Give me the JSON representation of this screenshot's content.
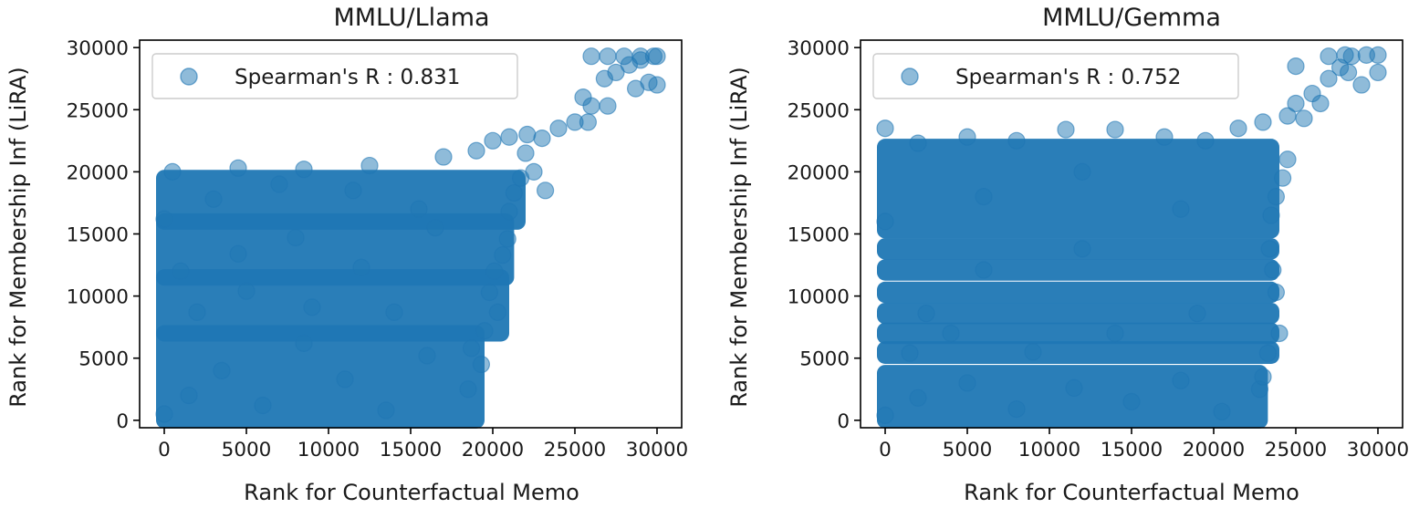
{
  "chart_data": [
    {
      "type": "scatter",
      "title": "MMLU/Llama",
      "xlabel": "Rank for Counterfactual Memo",
      "ylabel": "Rank for Membership Inf (LiRA)",
      "xlim": [
        -1500,
        31500
      ],
      "ylim": [
        -600,
        30600
      ],
      "xticks": [
        0,
        5000,
        10000,
        15000,
        20000,
        25000,
        30000
      ],
      "yticks": [
        0,
        5000,
        10000,
        15000,
        20000,
        25000,
        30000
      ],
      "xtick_labels": [
        "0",
        "5000",
        "10000",
        "15000",
        "20000",
        "25000",
        "30000"
      ],
      "ytick_labels": [
        "0",
        "5000",
        "10000",
        "15000",
        "20000",
        "25000",
        "30000"
      ],
      "grid": false,
      "legend": {
        "placement": "upper-left",
        "entries": [
          "Spearman's R : 0.831"
        ]
      },
      "series": [
        {
          "name": "Spearman's R : 0.831",
          "color": "#1f77b4",
          "alpha": 0.5,
          "bands": [
            {
              "y_min": 0,
              "y_max": 7000,
              "x_min": 0,
              "x_max": 19000
            },
            {
              "y_min": 7000,
              "y_max": 11500,
              "x_min": 0,
              "x_max": 20500
            },
            {
              "y_min": 11500,
              "y_max": 16000,
              "x_min": 0,
              "x_max": 20800
            },
            {
              "y_min": 16000,
              "y_max": 19500,
              "x_min": 0,
              "x_max": 21500
            }
          ],
          "sampled_points": [
            [
              0,
              500
            ],
            [
              1500,
              2000
            ],
            [
              3500,
              4000
            ],
            [
              6000,
              1200
            ],
            [
              8500,
              6200
            ],
            [
              11000,
              3300
            ],
            [
              13500,
              800
            ],
            [
              16000,
              5200
            ],
            [
              18500,
              2500
            ],
            [
              19300,
              4500
            ],
            [
              18700,
              5800
            ],
            [
              19500,
              7200
            ],
            [
              2000,
              8700
            ],
            [
              5000,
              10400
            ],
            [
              9000,
              9100
            ],
            [
              14000,
              8700
            ],
            [
              19800,
              10300
            ],
            [
              20300,
              8700
            ],
            [
              1000,
              12000
            ],
            [
              4500,
              13400
            ],
            [
              8000,
              14700
            ],
            [
              12000,
              12300
            ],
            [
              16500,
              15500
            ],
            [
              20100,
              12000
            ],
            [
              20600,
              13300
            ],
            [
              20900,
              14600
            ],
            [
              0,
              16200
            ],
            [
              3000,
              17800
            ],
            [
              7000,
              19000
            ],
            [
              11500,
              18500
            ],
            [
              15500,
              17000
            ],
            [
              21000,
              16800
            ],
            [
              21300,
              18300
            ],
            [
              21700,
              19500
            ],
            [
              500,
              20000
            ],
            [
              4500,
              20300
            ],
            [
              8500,
              20200
            ],
            [
              12500,
              20500
            ],
            [
              17000,
              21200
            ],
            [
              19000,
              21700
            ],
            [
              20000,
              22500
            ],
            [
              21000,
              22800
            ],
            [
              22000,
              21500
            ],
            [
              22500,
              20000
            ],
            [
              23200,
              18500
            ],
            [
              22100,
              23000
            ],
            [
              23000,
              22700
            ],
            [
              24000,
              23500
            ],
            [
              25000,
              24000
            ],
            [
              25500,
              26000
            ],
            [
              26000,
              25300
            ],
            [
              26800,
              27500
            ],
            [
              27500,
              28000
            ],
            [
              28300,
              28600
            ],
            [
              29000,
              29000
            ],
            [
              29800,
              29300
            ],
            [
              29500,
              27200
            ],
            [
              28700,
              26700
            ],
            [
              27000,
              25300
            ],
            [
              25800,
              24000
            ],
            [
              26000,
              29300
            ],
            [
              27000,
              29300
            ],
            [
              28000,
              29300
            ],
            [
              29000,
              29300
            ],
            [
              30000,
              29300
            ],
            [
              30000,
              27000
            ]
          ]
        }
      ]
    },
    {
      "type": "scatter",
      "title": "MMLU/Gemma",
      "xlabel": "Rank for Counterfactual Memo",
      "ylabel": "Rank for Membership Inf (LiRA)",
      "xlim": [
        -1500,
        31500
      ],
      "ylim": [
        -600,
        30600
      ],
      "xticks": [
        0,
        5000,
        10000,
        15000,
        20000,
        25000,
        30000
      ],
      "yticks": [
        0,
        5000,
        10000,
        15000,
        20000,
        25000,
        30000
      ],
      "xtick_labels": [
        "0",
        "5000",
        "10000",
        "15000",
        "20000",
        "25000",
        "30000"
      ],
      "ytick_labels": [
        "0",
        "5000",
        "10000",
        "15000",
        "20000",
        "25000",
        "30000"
      ],
      "grid": false,
      "legend": {
        "placement": "upper-left",
        "entries": [
          "Spearman's R : 0.752"
        ]
      },
      "series": [
        {
          "name": "Spearman's R : 0.752",
          "color": "#1f77b4",
          "alpha": 0.5,
          "bands": [
            {
              "y_min": 0,
              "y_max": 3800,
              "x_min": 0,
              "x_max": 22800
            },
            {
              "y_min": 5200,
              "y_max": 5700,
              "x_min": 0,
              "x_max": 23500
            },
            {
              "y_min": 6800,
              "y_max": 7200,
              "x_min": 0,
              "x_max": 23500
            },
            {
              "y_min": 8400,
              "y_max": 8800,
              "x_min": 0,
              "x_max": 23500
            },
            {
              "y_min": 10100,
              "y_max": 10500,
              "x_min": 0,
              "x_max": 23500
            },
            {
              "y_min": 11900,
              "y_max": 12300,
              "x_min": 0,
              "x_max": 23500
            },
            {
              "y_min": 13600,
              "y_max": 14000,
              "x_min": 0,
              "x_max": 23500
            },
            {
              "y_min": 15300,
              "y_max": 22000,
              "x_min": 0,
              "x_max": 23500
            }
          ],
          "sampled_points": [
            [
              0,
              400
            ],
            [
              2000,
              1800
            ],
            [
              5000,
              3000
            ],
            [
              8000,
              900
            ],
            [
              11500,
              2600
            ],
            [
              15000,
              1500
            ],
            [
              18000,
              3200
            ],
            [
              20500,
              700
            ],
            [
              22800,
              2500
            ],
            [
              23000,
              3500
            ],
            [
              1500,
              5400
            ],
            [
              9000,
              5500
            ],
            [
              23300,
              5400
            ],
            [
              4000,
              7000
            ],
            [
              14000,
              7000
            ],
            [
              24000,
              7000
            ],
            [
              2500,
              8600
            ],
            [
              19000,
              8600
            ],
            [
              23800,
              10300
            ],
            [
              6000,
              12100
            ],
            [
              23600,
              12100
            ],
            [
              12000,
              13800
            ],
            [
              23400,
              13800
            ],
            [
              0,
              16000
            ],
            [
              6000,
              18000
            ],
            [
              12000,
              20000
            ],
            [
              18000,
              17000
            ],
            [
              23500,
              16500
            ],
            [
              23800,
              18000
            ],
            [
              24200,
              19500
            ],
            [
              24500,
              21000
            ],
            [
              0,
              23500
            ],
            [
              2000,
              22300
            ],
            [
              5000,
              22800
            ],
            [
              8000,
              22500
            ],
            [
              11000,
              23400
            ],
            [
              14000,
              23400
            ],
            [
              17000,
              22800
            ],
            [
              19500,
              22500
            ],
            [
              21500,
              23500
            ],
            [
              23000,
              24000
            ],
            [
              24500,
              24500
            ],
            [
              25000,
              25500
            ],
            [
              26000,
              26300
            ],
            [
              27000,
              27500
            ],
            [
              27700,
              28400
            ],
            [
              28400,
              29300
            ],
            [
              29300,
              29400
            ],
            [
              30000,
              29400
            ],
            [
              29000,
              27000
            ],
            [
              28200,
              28000
            ],
            [
              26500,
              25500
            ],
            [
              25500,
              24300
            ],
            [
              25000,
              28500
            ],
            [
              27000,
              29300
            ],
            [
              28000,
              29400
            ],
            [
              30000,
              28000
            ]
          ]
        }
      ]
    }
  ]
}
